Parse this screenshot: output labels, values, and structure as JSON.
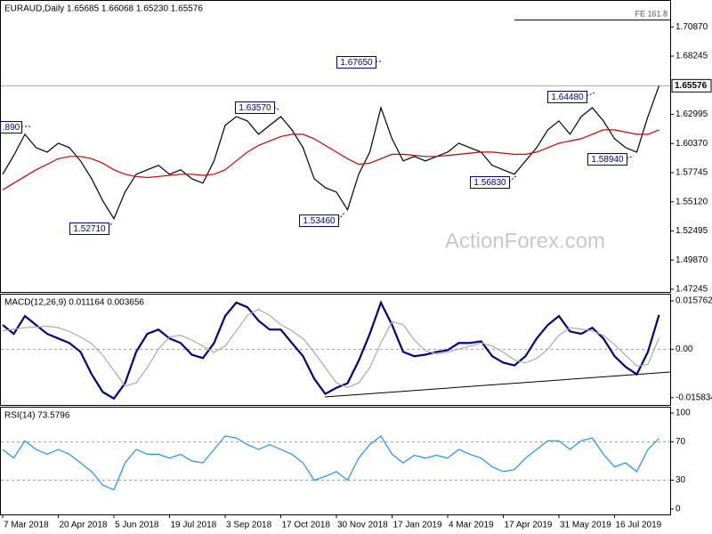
{
  "chart_data": [
    {
      "type": "line",
      "title": "EURAUD,Daily  1.65685 1.66068 1.65230 1.65576",
      "watermark": "ActionForex.com",
      "ylim": [
        1.47,
        1.733
      ],
      "yticks": [
        {
          "value": 1.47245,
          "label": "1.47245"
        },
        {
          "value": 1.4987,
          "label": "1.49870"
        },
        {
          "value": 1.52495,
          "label": "1.52495"
        },
        {
          "value": 1.5512,
          "label": "1.55120"
        },
        {
          "value": 1.57745,
          "label": "1.57745"
        },
        {
          "value": 1.6037,
          "label": "1.60370"
        },
        {
          "value": 1.62995,
          "label": "1.62995"
        },
        {
          "value": 1.68245,
          "label": "1.68245"
        },
        {
          "value": 1.7087,
          "label": "1.70870"
        }
      ],
      "last_price": 1.65576,
      "fe_level": {
        "value": 1.7151,
        "label": "FE 161.8"
      },
      "annotations": [
        ".890",
        "1.52710",
        "1.63570",
        "1.53460",
        "1.67650",
        "1.56830",
        "1.64480",
        "1.58940"
      ],
      "series": [
        {
          "color": "#000000",
          "values": [
            1.576,
            1.593,
            1.612,
            1.6,
            1.596,
            1.604,
            1.6,
            1.588,
            1.572,
            1.552,
            1.536,
            1.56,
            1.576,
            1.58,
            1.584,
            1.576,
            1.58,
            1.572,
            1.568,
            1.588,
            1.62,
            1.628,
            1.624,
            1.612,
            1.62,
            1.628,
            1.616,
            1.6,
            1.572,
            1.564,
            1.56,
            1.544,
            1.576,
            1.596,
            1.636,
            1.608,
            1.588,
            1.592,
            1.588,
            1.592,
            1.596,
            1.604,
            1.6,
            1.596,
            1.584,
            1.58,
            1.576,
            1.588,
            1.6,
            1.616,
            1.624,
            1.612,
            1.628,
            1.636,
            1.624,
            1.608,
            1.6,
            1.596,
            1.628,
            1.6558
          ]
        },
        {
          "color": "#cc0000",
          "values": [
            1.562,
            1.568,
            1.574,
            1.58,
            1.585,
            1.59,
            1.592,
            1.592,
            1.59,
            1.586,
            1.58,
            1.576,
            1.574,
            1.573,
            1.574,
            1.575,
            1.576,
            1.576,
            1.575,
            1.576,
            1.58,
            1.588,
            1.596,
            1.602,
            1.606,
            1.61,
            1.612,
            1.612,
            1.608,
            1.602,
            1.596,
            1.59,
            1.585,
            1.586,
            1.59,
            1.594,
            1.594,
            1.593,
            1.592,
            1.592,
            1.593,
            1.594,
            1.595,
            1.596,
            1.596,
            1.595,
            1.594,
            1.594,
            1.596,
            1.6,
            1.604,
            1.606,
            1.608,
            1.612,
            1.616,
            1.616,
            1.614,
            1.612,
            1.612,
            1.616
          ]
        }
      ]
    },
    {
      "type": "line",
      "title": "MACD(12,26,9) 0.011164 0.003656",
      "ylim": [
        -0.0182,
        0.0181
      ],
      "yticks": [
        0.015762,
        {
          "value": 0,
          "label": "0.00"
        },
        -0.015834
      ],
      "levels": [
        0
      ],
      "series": [
        {
          "color": "#000080",
          "values": [
            0.0079,
            0.005,
            0.0108,
            0.0079,
            0.005,
            0.0035,
            0.002,
            -0.0009,
            -0.0082,
            -0.014,
            -0.0161,
            -0.0111,
            -0.0009,
            0.005,
            0.0064,
            0.0035,
            0.002,
            -0.0018,
            -0.0029,
            0.002,
            0.0108,
            0.0152,
            0.0137,
            0.0093,
            0.0064,
            0.0064,
            0.002,
            -0.0023,
            -0.0096,
            -0.0146,
            -0.0126,
            -0.0111,
            -0.0038,
            0.005,
            0.0152,
            0.0079,
            -0.0009,
            -0.0023,
            -0.0018,
            -0.0009,
            -0.0003,
            0.002,
            0.002,
            0.0026,
            -0.0023,
            -0.0044,
            -0.0053,
            -0.0023,
            0.0035,
            0.0079,
            0.0108,
            0.0058,
            0.005,
            0.007,
            0.0035,
            -0.0023,
            -0.0058,
            -0.0082,
            -0.0009,
            0.0112
          ]
        },
        {
          "color": "#aaaaaa",
          "values": [
            0.006,
            0.0065,
            0.007,
            0.0072,
            0.0075,
            0.007,
            0.0058,
            0.004,
            0.0018,
            -0.002,
            -0.007,
            -0.012,
            -0.011,
            -0.006,
            0.0,
            0.004,
            0.0045,
            0.003,
            0.001,
            -0.001,
            0.001,
            0.006,
            0.011,
            0.013,
            0.011,
            0.008,
            0.006,
            0.0035,
            -0.001,
            -0.006,
            -0.011,
            -0.0125,
            -0.011,
            -0.006,
            0.002,
            0.009,
            0.008,
            0.003,
            -0.0005,
            -0.0015,
            -0.001,
            0.0,
            0.001,
            0.002,
            0.001,
            -0.001,
            -0.0035,
            -0.0045,
            -0.003,
            0.0,
            0.0045,
            0.007,
            0.0065,
            0.006,
            0.0045,
            0.0015,
            -0.002,
            -0.0055,
            -0.005,
            0.0037
          ]
        }
      ]
    },
    {
      "type": "line",
      "title": "RSI(14) 73.5796",
      "ylim": [
        -5.6,
        106.5
      ],
      "yticks": [
        100,
        70,
        30,
        0
      ],
      "levels": [
        70,
        30
      ],
      "categories": [
        "7 Mar 2018",
        null,
        null,
        null,
        null,
        "20 Apr 2018",
        null,
        null,
        null,
        null,
        "5 Jun 2018",
        null,
        null,
        null,
        null,
        "19 Jul 2018",
        null,
        null,
        null,
        null,
        "3 Sep 2018",
        null,
        null,
        null,
        null,
        "17 Oct 2018",
        null,
        null,
        null,
        null,
        "30 Nov 2018",
        null,
        null,
        null,
        null,
        "17 Jan 2019",
        null,
        null,
        null,
        null,
        "4 Mar 2019",
        null,
        null,
        null,
        null,
        "17 Apr 2019",
        null,
        null,
        null,
        null,
        "31 May 2019",
        null,
        null,
        null,
        null,
        "16 Jul 2019",
        null,
        null,
        null,
        null
      ],
      "series": [
        {
          "color": "#1e90ff",
          "values": [
            62,
            53,
            71,
            62,
            57,
            62,
            57,
            48,
            39,
            25,
            20,
            48,
            62,
            57,
            57,
            53,
            57,
            50,
            48,
            62,
            76,
            74,
            67,
            62,
            67,
            62,
            57,
            48,
            30,
            34,
            39,
            30,
            53,
            67,
            76,
            57,
            48,
            56,
            53,
            56,
            53,
            62,
            57,
            53,
            44,
            39,
            41,
            53,
            62,
            71,
            71,
            62,
            71,
            74,
            57,
            44,
            48,
            39,
            62,
            73.58
          ]
        }
      ]
    }
  ]
}
